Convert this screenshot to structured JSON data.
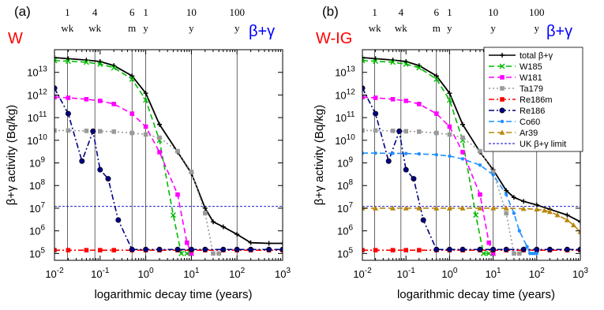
{
  "colors": {
    "total": "#000000",
    "W185": "#00bb00",
    "W181": "#ff00ff",
    "Ta179": "#9a9a9a",
    "Re186m": "#ff0000",
    "Re186": "#000080",
    "Co60": "#1e90ff",
    "Ar39": "#b8860b",
    "limit": "#0000c0",
    "material_label": "#ff0000",
    "type_label": "#0000ff"
  },
  "chart_data": [
    {
      "type": "line",
      "panel_tag": "(a)",
      "material_label": "W",
      "type_label": "β+γ",
      "xlabel": "logarithmic decay time (years)",
      "ylabel": "β+γ activity (Bq/kg)",
      "x_scale": "log",
      "y_scale": "log",
      "xlim": [
        0.01,
        1000
      ],
      "ylim": [
        50000,
        100000000000000
      ],
      "x_ticks": [
        {
          "base": "10",
          "exp": "-2"
        },
        {
          "base": "10",
          "exp": "-1"
        },
        {
          "base": "10",
          "exp": "0"
        },
        {
          "base": "10",
          "exp": "1"
        },
        {
          "base": "10",
          "exp": "2"
        },
        {
          "base": "10",
          "exp": "3"
        }
      ],
      "y_ticks": [
        {
          "base": "10",
          "exp": "5"
        },
        {
          "base": "10",
          "exp": "6"
        },
        {
          "base": "10",
          "exp": "7"
        },
        {
          "base": "10",
          "exp": "8"
        },
        {
          "base": "10",
          "exp": "9"
        },
        {
          "base": "10",
          "exp": "10"
        },
        {
          "base": "10",
          "exp": "11"
        },
        {
          "base": "10",
          "exp": "12"
        },
        {
          "base": "10",
          "exp": "13"
        }
      ],
      "ref_times": [
        {
          "label": "1\nwk",
          "years": 0.0192
        },
        {
          "label": "4\nwk",
          "years": 0.0767
        },
        {
          "label": "6\nm",
          "years": 0.5
        },
        {
          "label": "1\ny",
          "years": 1
        },
        {
          "label": "10\ny",
          "years": 10
        },
        {
          "label": "100\ny",
          "years": 100
        }
      ],
      "hline": {
        "name": "UK β+γ limit",
        "y": 12000000
      },
      "legend": false,
      "series": [
        {
          "key": "total",
          "name": "total β+γ",
          "style": "solid",
          "marker": "plus",
          "x": [
            0.01,
            0.02,
            0.05,
            0.1,
            0.2,
            0.5,
            1,
            2,
            5,
            10,
            20,
            30,
            50,
            100,
            200,
            500,
            1000
          ],
          "y": [
            45000000000000,
            40000000000000,
            35000000000000,
            30000000000000,
            20000000000000,
            7000000000000,
            1200000000000,
            50000000000,
            3000000000,
            350000000,
            10000000,
            2500000,
            1500000,
            700000,
            300000,
            280000,
            280000
          ]
        },
        {
          "key": "W185",
          "name": "W185",
          "style": "dashed",
          "marker": "x",
          "x": [
            0.01,
            0.02,
            0.05,
            0.1,
            0.2,
            0.5,
            1,
            2,
            4,
            6,
            8,
            10
          ],
          "y": [
            33000000000000,
            31000000000000,
            28000000000000,
            23000000000000,
            16000000000000,
            5000000000000,
            600000000000,
            10000000000,
            5000000,
            100000,
            100000,
            100000
          ]
        },
        {
          "key": "W181",
          "name": "W181",
          "style": "dashed",
          "marker": "square",
          "x": [
            0.01,
            0.02,
            0.05,
            0.1,
            0.2,
            0.5,
            1,
            2,
            5,
            8,
            10
          ],
          "y": [
            800000000000,
            750000000000,
            650000000000,
            550000000000,
            400000000000,
            150000000000,
            40000000000,
            3000000000,
            40000000,
            300000,
            100000
          ]
        },
        {
          "key": "Ta179",
          "name": "Ta179",
          "style": "dotted",
          "marker": "square",
          "x": [
            0.01,
            0.02,
            0.05,
            0.1,
            0.2,
            0.5,
            1,
            2,
            5,
            10,
            20,
            30,
            40
          ],
          "y": [
            27000000000,
            27000000000,
            26000000000,
            25000000000,
            24000000000,
            21000000000,
            18000000000,
            13000000000,
            3300000000,
            400000000,
            6000000,
            100000,
            100000
          ]
        },
        {
          "key": "Re186m",
          "name": "Re186m",
          "style": "dashdot",
          "marker": "square",
          "x": [
            0.01,
            0.02,
            0.05,
            0.1,
            0.2,
            0.5,
            1,
            2,
            5,
            10,
            20,
            50,
            100,
            200,
            500,
            1000
          ],
          "y": [
            140000,
            140000,
            140000,
            140000,
            140000,
            140000,
            140000,
            140000,
            140000,
            140000,
            140000,
            140000,
            140000,
            140000,
            140000,
            140000
          ]
        },
        {
          "key": "Re186",
          "name": "Re186",
          "style": "dashdot",
          "marker": "circle",
          "x": [
            0.01,
            0.02,
            0.04,
            0.07,
            0.1,
            0.15,
            0.25,
            0.5,
            1,
            2,
            5,
            10,
            20,
            50,
            100,
            200,
            500,
            1000
          ],
          "y": [
            2000000000000,
            150000000000,
            1200000000,
            25000000000,
            500000000,
            200000000,
            3000000,
            150000,
            150000,
            150000,
            150000,
            150000,
            150000,
            150000,
            150000,
            150000,
            150000,
            150000
          ]
        }
      ]
    },
    {
      "type": "line",
      "panel_tag": "(b)",
      "material_label": "W-IG",
      "type_label": "β+γ",
      "xlabel": "logarithmic decay time (years)",
      "ylabel": "β+γ activity (Bq/kg)",
      "x_scale": "log",
      "y_scale": "log",
      "xlim": [
        0.01,
        1000
      ],
      "ylim": [
        50000,
        100000000000000
      ],
      "x_ticks": [
        {
          "base": "10",
          "exp": "-2"
        },
        {
          "base": "10",
          "exp": "-1"
        },
        {
          "base": "10",
          "exp": "0"
        },
        {
          "base": "10",
          "exp": "1"
        },
        {
          "base": "10",
          "exp": "2"
        },
        {
          "base": "10",
          "exp": "3"
        }
      ],
      "y_ticks": [
        {
          "base": "10",
          "exp": "5"
        },
        {
          "base": "10",
          "exp": "6"
        },
        {
          "base": "10",
          "exp": "7"
        },
        {
          "base": "10",
          "exp": "8"
        },
        {
          "base": "10",
          "exp": "9"
        },
        {
          "base": "10",
          "exp": "10"
        },
        {
          "base": "10",
          "exp": "11"
        },
        {
          "base": "10",
          "exp": "12"
        },
        {
          "base": "10",
          "exp": "13"
        }
      ],
      "ref_times": [
        {
          "label": "1\nwk",
          "years": 0.0192
        },
        {
          "label": "4\nwk",
          "years": 0.0767
        },
        {
          "label": "6\nm",
          "years": 0.5
        },
        {
          "label": "1\ny",
          "years": 1
        },
        {
          "label": "10\ny",
          "years": 10
        },
        {
          "label": "100\ny",
          "years": 100
        }
      ],
      "hline": {
        "name": "UK β+γ limit",
        "y": 12000000
      },
      "legend": true,
      "legend_position": "top-right",
      "series": [
        {
          "key": "total",
          "name": "total β+γ",
          "style": "solid",
          "marker": "plus",
          "x": [
            0.01,
            0.02,
            0.05,
            0.1,
            0.2,
            0.5,
            1,
            2,
            5,
            10,
            20,
            30,
            50,
            100,
            200,
            500,
            1000
          ],
          "y": [
            45000000000000,
            40000000000000,
            35000000000000,
            30000000000000,
            20000000000000,
            7000000000000,
            1200000000000,
            50000000000,
            3000000000,
            500000000,
            60000000,
            30000000,
            20000000,
            14000000,
            9000000,
            5000000,
            2500000
          ]
        },
        {
          "key": "W185",
          "name": "W185",
          "style": "dashed",
          "marker": "x",
          "x": [
            0.01,
            0.02,
            0.05,
            0.1,
            0.2,
            0.5,
            1,
            2,
            4,
            6,
            8,
            10
          ],
          "y": [
            33000000000000,
            31000000000000,
            28000000000000,
            23000000000000,
            16000000000000,
            5000000000000,
            600000000000,
            10000000000,
            5000000,
            100000,
            100000,
            100000
          ]
        },
        {
          "key": "W181",
          "name": "W181",
          "style": "dashed",
          "marker": "square",
          "x": [
            0.01,
            0.02,
            0.05,
            0.1,
            0.2,
            0.5,
            1,
            2,
            5,
            8,
            10
          ],
          "y": [
            800000000000,
            750000000000,
            650000000000,
            550000000000,
            400000000000,
            150000000000,
            40000000000,
            3000000000,
            40000000,
            300000,
            100000
          ]
        },
        {
          "key": "Ta179",
          "name": "Ta179",
          "style": "dotted",
          "marker": "square",
          "x": [
            0.01,
            0.02,
            0.05,
            0.1,
            0.2,
            0.5,
            1,
            2,
            5,
            10,
            20,
            30,
            40
          ],
          "y": [
            27000000000,
            27000000000,
            26000000000,
            25000000000,
            24000000000,
            21000000000,
            18000000000,
            13000000000,
            3300000000,
            400000000,
            6000000,
            100000,
            100000
          ]
        },
        {
          "key": "Re186m",
          "name": "Re186m",
          "style": "dashdot",
          "marker": "square",
          "x": [
            0.01,
            0.02,
            0.05,
            0.1,
            0.2,
            0.5,
            1,
            2,
            5,
            10,
            20,
            50,
            100,
            200,
            500,
            1000
          ],
          "y": [
            140000,
            140000,
            140000,
            140000,
            140000,
            140000,
            140000,
            140000,
            140000,
            140000,
            140000,
            140000,
            140000,
            140000,
            140000,
            140000
          ]
        },
        {
          "key": "Re186",
          "name": "Re186",
          "style": "dashdot",
          "marker": "circle",
          "x": [
            0.01,
            0.02,
            0.04,
            0.07,
            0.1,
            0.15,
            0.25,
            0.5,
            1,
            2,
            5,
            10,
            20,
            50,
            100,
            200,
            500,
            1000
          ],
          "y": [
            2000000000000,
            150000000000,
            1200000000,
            25000000000,
            500000000,
            200000000,
            3000000,
            150000,
            150000,
            150000,
            150000,
            150000,
            150000,
            150000,
            150000,
            150000,
            150000,
            150000
          ]
        },
        {
          "key": "Co60",
          "name": "Co60",
          "style": "dashed",
          "marker": "dot",
          "x": [
            0.01,
            0.02,
            0.05,
            0.1,
            0.2,
            0.5,
            1,
            2,
            5,
            10,
            20,
            30,
            40,
            60,
            70,
            80,
            90,
            100
          ],
          "y": [
            2700000000,
            2700000000,
            2650000000,
            2600000000,
            2500000000,
            2300000000,
            2000000000,
            1500000000,
            800000000,
            300000000,
            40000000,
            6000000,
            1000000,
            200000,
            100000,
            100000,
            100000,
            100000
          ]
        },
        {
          "key": "Ar39",
          "name": "Ar39",
          "style": "dashed",
          "marker": "triangle",
          "x": [
            0.01,
            0.02,
            0.05,
            0.1,
            0.2,
            0.5,
            1,
            2,
            5,
            10,
            20,
            50,
            100,
            150,
            200,
            300,
            500,
            700,
            1000
          ],
          "y": [
            10000000,
            10000000,
            10000000,
            10000000,
            10000000,
            10000000,
            10000000,
            10000000,
            10000000,
            10000000,
            10000000,
            9500000,
            9000000,
            8000000,
            7000000,
            5000000,
            3000000,
            1800000,
            900000
          ]
        }
      ]
    }
  ]
}
